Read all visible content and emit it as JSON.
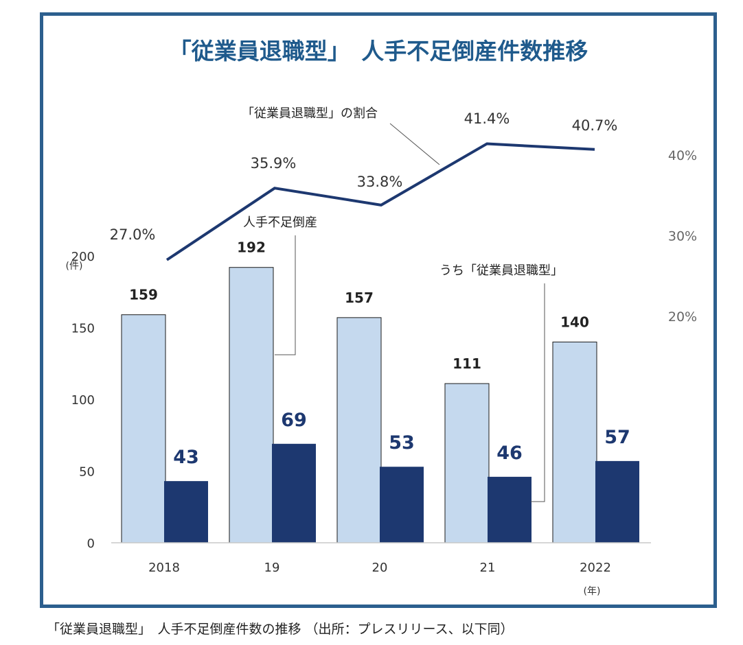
{
  "caption": "「従業員退職型」　人手不足倒産件数の推移 （出所：プレスリリース、以下同）",
  "chart_data": {
    "type": "bar",
    "title": "「従業員退職型」　人手不足倒産件数推移",
    "categories": [
      "2018",
      "19",
      "20",
      "21",
      "2022"
    ],
    "series": [
      {
        "name": "人手不足倒産",
        "values": [
          159,
          192,
          157,
          111,
          140
        ],
        "color": "#c5d9ee"
      },
      {
        "name": "うち「従業員退職型」",
        "values": [
          43,
          69,
          53,
          46,
          57
        ],
        "color": "#1d3870"
      }
    ],
    "line_series": {
      "name": "「従業員退職型」の割合",
      "values": [
        27.0,
        35.9,
        33.8,
        41.4,
        40.7
      ],
      "labels": [
        "27.0%",
        "35.9%",
        "33.8%",
        "41.4%",
        "40.7%"
      ],
      "color": "#1d3870"
    },
    "ylim": [
      0,
      200
    ],
    "yticks": [
      0,
      50,
      100,
      150,
      200
    ],
    "y_unit": "(件)",
    "x_unit": "(年)",
    "y2lim": [
      10,
      50
    ],
    "y2ticks": [
      "20%",
      "30%",
      "40%"
    ],
    "y2tick_values": [
      20,
      30,
      40
    ],
    "grid": false
  }
}
